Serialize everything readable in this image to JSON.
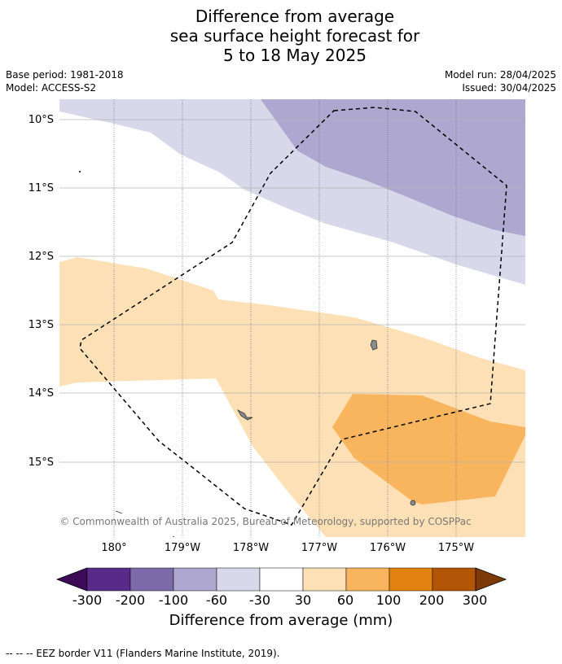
{
  "title_lines": [
    "Difference from average",
    "sea surface height forecast for",
    "5 to 18 May 2025"
  ],
  "meta_left": [
    "Base period: 1981-2018",
    "Model: ACCESS-S2"
  ],
  "meta_right": [
    "Model run: 28/04/2025",
    "Issued: 30/04/2025"
  ],
  "lat_labels": [
    "10°S",
    "11°S",
    "12°S",
    "13°S",
    "14°S",
    "15°S"
  ],
  "lon_labels": [
    "180°",
    "179°W",
    "178°W",
    "177°W",
    "176°W",
    "175°W"
  ],
  "copyright": "© Commonwealth of Australia 2025, Bureau of Meteorology, supported by COSPPac",
  "colorbar": {
    "ticks": [
      "-300",
      "-200",
      "-100",
      "-60",
      "-30",
      "30",
      "60",
      "100",
      "200",
      "300"
    ],
    "colors": [
      "#3d0b57",
      "#5a2a8a",
      "#7d6aa9",
      "#aea7cf",
      "#d8d8ea",
      "#ffffff",
      "#fde0b5",
      "#f9b55e",
      "#e2820f",
      "#b25507",
      "#7d3a06"
    ],
    "label": "Difference from average (mm)"
  },
  "footer": "--  --  -- EEZ border V11 (Flanders Marine Institute, 2019)."
}
